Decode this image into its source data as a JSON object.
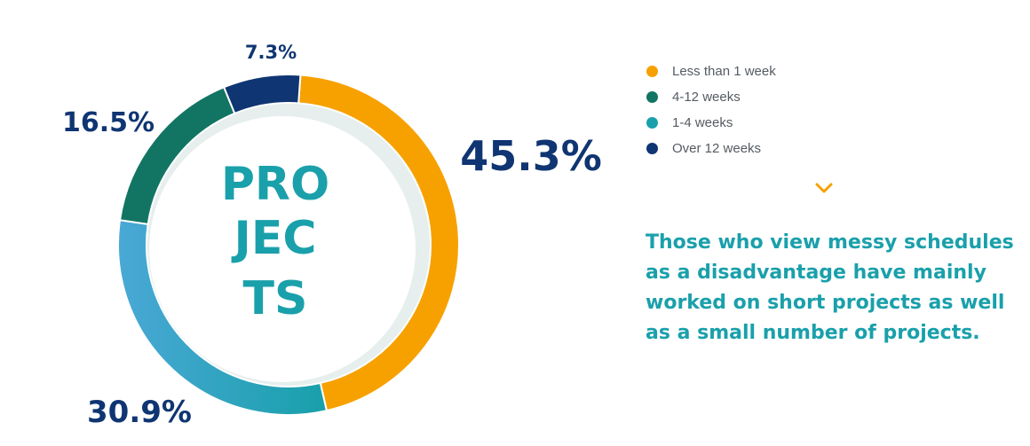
{
  "chart_data": {
    "type": "pie",
    "donut": true,
    "center_lines": [
      "PRO",
      "JEC",
      "TS"
    ],
    "slices": [
      {
        "label": "Less than 1 week",
        "value": 45.3,
        "display": "45.3%",
        "color": "#f7a100"
      },
      {
        "label": "1-4 weeks",
        "value": 30.9,
        "display": "30.9%",
        "color": "#1aa0ab"
      },
      {
        "label": "4-12 weeks",
        "value": 16.5,
        "display": "16.5%",
        "color": "#127563"
      },
      {
        "label": "Over 12 weeks",
        "value": 7.3,
        "display": "7.3%",
        "color": "#0f3572"
      }
    ],
    "legend": [
      {
        "label": "Less than 1 week",
        "color": "#f7a100"
      },
      {
        "label": "4-12 weeks",
        "color": "#127563"
      },
      {
        "label": "1-4 weeks",
        "color": "#1aa0ab"
      },
      {
        "label": "Over 12 weeks",
        "color": "#0f3572"
      }
    ],
    "legend_position": "top-right"
  },
  "takeaway": "Those who view messy schedules as a disadvantage have mainly worked on short projects as well as a small number of projects.",
  "icons": {
    "scroll": "chevron-down-icon"
  },
  "colors": {
    "label_navy": "#0f3572",
    "accent_teal": "#1aa0ab",
    "accent_orange": "#f7a100"
  }
}
